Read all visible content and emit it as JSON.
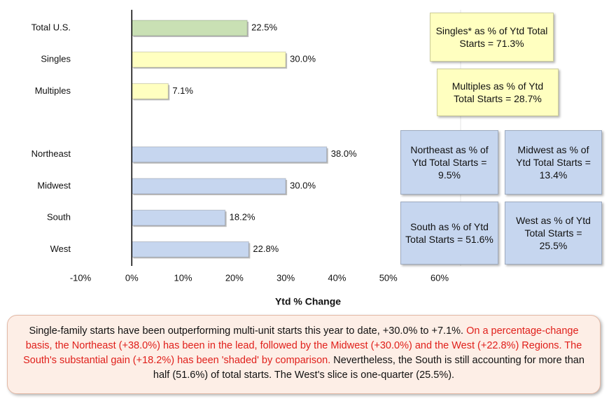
{
  "chart_data": {
    "type": "barh",
    "x_label": "Ytd % Change",
    "categories": [
      "Total U.S.",
      "Singles",
      "Multiples",
      null,
      "Northeast",
      "Midwest",
      "South",
      "West"
    ],
    "values": [
      22.5,
      30.0,
      7.1,
      null,
      38.0,
      30.0,
      18.2,
      22.8
    ],
    "value_labels": [
      "22.5%",
      "30.0%",
      "7.1%",
      null,
      "38.0%",
      "30.0%",
      "18.2%",
      "22.8%"
    ],
    "colors": [
      "#c9e0b4",
      "#ffffc0",
      "#ffffc0",
      null,
      "#c6d6ef",
      "#c6d6ef",
      "#c6d6ef",
      "#c6d6ef"
    ],
    "xlim": [
      -10,
      60
    ],
    "xticks": [
      {
        "value": -10,
        "label": "-10%"
      },
      {
        "value": 0,
        "label": "0%"
      },
      {
        "value": 10,
        "label": "10%"
      },
      {
        "value": 20,
        "label": "20%"
      },
      {
        "value": 30,
        "label": "30%"
      },
      {
        "value": 40,
        "label": "40%"
      },
      {
        "value": 50,
        "label": "50%"
      },
      {
        "value": 60,
        "label": "60%"
      }
    ],
    "annotations": [
      {
        "text": "Singles* as % of Ytd Total Starts = 71.3%",
        "color": "#ffffc0"
      },
      {
        "text": "Multiples as % of Ytd Total Starts = 28.7%",
        "color": "#ffffc0"
      },
      {
        "text": "Northeast as % of Ytd Total Starts = 9.5%",
        "color": "#c6d6ef"
      },
      {
        "text": "Midwest as % of Ytd Total Starts = 13.4%",
        "color": "#c6d6ef"
      },
      {
        "text": "South as % of Ytd Total Starts = 51.6%",
        "color": "#c6d6ef"
      },
      {
        "text": "West as % of Ytd Total Starts = 25.5%",
        "color": "#c6d6ef"
      }
    ]
  },
  "note": [
    {
      "text": "Single-family starts have been outperforming multi-unit starts this year to date, +30.0% to +7.1%.",
      "color": "#111111"
    },
    {
      "text": "On a percentage-change basis, the Northeast (+38.0%) has been in the lead, followed by the Midwest (+30.0%) and the West (+22.8%) Regions. The South's substantial gain (+18.2%) has been 'shaded' by comparison.",
      "color": "#e0201b"
    },
    {
      "text": "Nevertheless, the South is still accounting for more than half (51.6%) of total starts. The West's slice is one-quarter (25.5%).",
      "color": "#111111"
    }
  ]
}
